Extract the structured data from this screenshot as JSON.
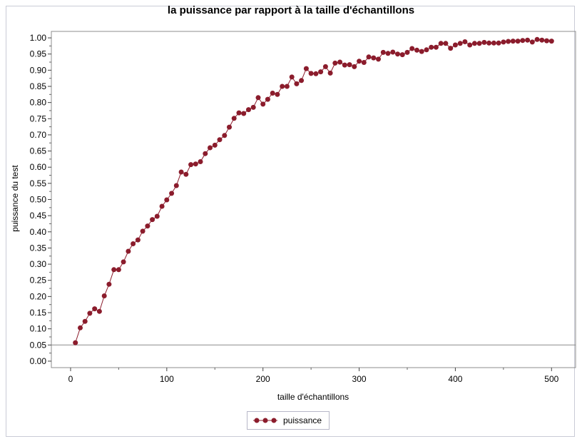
{
  "chart_data": {
    "type": "line",
    "title": "la puissance par rapport à la taille d'échantillons",
    "xlabel": "taille d'échantillons",
    "ylabel": "puissance du test",
    "xlim": [
      -20,
      525
    ],
    "ylim": [
      -0.02,
      1.02
    ],
    "xticks": [
      0,
      100,
      200,
      300,
      400,
      500
    ],
    "yticks": [
      0.0,
      0.05,
      0.1,
      0.15,
      0.2,
      0.25,
      0.3,
      0.35,
      0.4,
      0.45,
      0.5,
      0.55,
      0.6,
      0.65,
      0.7,
      0.75,
      0.8,
      0.85,
      0.9,
      0.95,
      1.0
    ],
    "ytick_labels": [
      "0.00",
      "0.05",
      "0.10",
      "0.15",
      "0.20",
      "0.25",
      "0.30",
      "0.35",
      "0.40",
      "0.45",
      "0.50",
      "0.55",
      "0.60",
      "0.65",
      "0.70",
      "0.75",
      "0.80",
      "0.85",
      "0.90",
      "0.95",
      "1.00"
    ],
    "reference_line_y": 0.05,
    "grid": false,
    "legend_position": "bottom-center",
    "series": [
      {
        "name": "puissance",
        "color": "#8b1c2c",
        "marker": "circle",
        "x": [
          5,
          10,
          15,
          20,
          25,
          30,
          35,
          40,
          45,
          50,
          55,
          60,
          65,
          70,
          75,
          80,
          85,
          90,
          95,
          100,
          105,
          110,
          115,
          120,
          125,
          130,
          135,
          140,
          145,
          150,
          155,
          160,
          165,
          170,
          175,
          180,
          185,
          190,
          195,
          200,
          205,
          210,
          215,
          220,
          225,
          230,
          235,
          240,
          245,
          250,
          255,
          260,
          265,
          270,
          275,
          280,
          285,
          290,
          295,
          300,
          305,
          310,
          315,
          320,
          325,
          330,
          335,
          340,
          345,
          350,
          355,
          360,
          365,
          370,
          375,
          380,
          385,
          390,
          395,
          400,
          405,
          410,
          415,
          420,
          425,
          430,
          435,
          440,
          445,
          450,
          455,
          460,
          465,
          470,
          475,
          480,
          485,
          490,
          495,
          500
        ],
        "y": [
          0.057,
          0.103,
          0.123,
          0.148,
          0.162,
          0.154,
          0.202,
          0.238,
          0.283,
          0.283,
          0.307,
          0.34,
          0.363,
          0.375,
          0.402,
          0.418,
          0.438,
          0.448,
          0.479,
          0.499,
          0.519,
          0.543,
          0.585,
          0.578,
          0.608,
          0.61,
          0.617,
          0.642,
          0.66,
          0.668,
          0.685,
          0.698,
          0.724,
          0.751,
          0.768,
          0.766,
          0.778,
          0.785,
          0.815,
          0.795,
          0.81,
          0.829,
          0.825,
          0.85,
          0.85,
          0.879,
          0.858,
          0.868,
          0.905,
          0.89,
          0.889,
          0.895,
          0.911,
          0.891,
          0.922,
          0.925,
          0.916,
          0.917,
          0.911,
          0.928,
          0.924,
          0.941,
          0.938,
          0.934,
          0.955,
          0.952,
          0.956,
          0.95,
          0.948,
          0.955,
          0.967,
          0.962,
          0.958,
          0.963,
          0.971,
          0.971,
          0.983,
          0.983,
          0.968,
          0.978,
          0.983,
          0.988,
          0.978,
          0.983,
          0.983,
          0.986,
          0.984,
          0.984,
          0.984,
          0.987,
          0.989,
          0.99,
          0.99,
          0.992,
          0.993,
          0.987,
          0.995,
          0.993,
          0.991,
          0.99
        ]
      }
    ]
  }
}
